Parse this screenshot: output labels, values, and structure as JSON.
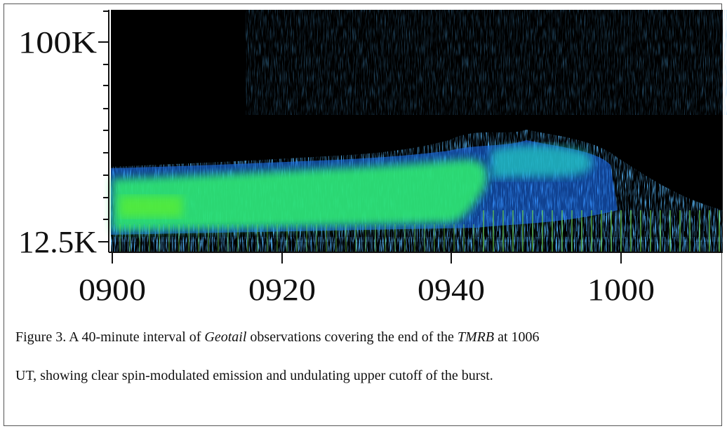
{
  "figure": {
    "y_tick_labels": [
      "100K",
      "12.5K"
    ],
    "x_tick_labels": [
      "0900",
      "0920",
      "0940",
      "1000"
    ],
    "caption": {
      "line1": [
        "Figure 3. A 40-minute interval of ",
        "Geotail",
        " observations covering the end of the ",
        "TMRB",
        " at 1006"
      ],
      "line2": "UT, showing clear spin-modulated emission and undulating upper cutoff of the burst."
    }
  }
}
